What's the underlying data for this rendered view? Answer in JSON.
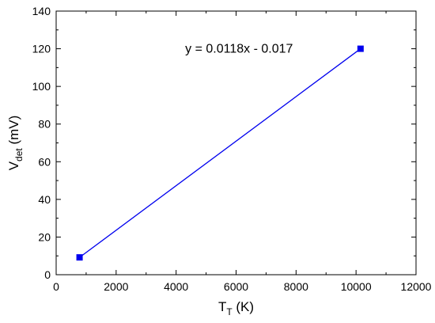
{
  "chart_data": {
    "type": "scatter",
    "title": "",
    "xlabel": {
      "main": "T",
      "sub": "T",
      "unit": " (K)"
    },
    "ylabel": {
      "main": "V",
      "sub": "det",
      "unit": " (mV)"
    },
    "xlim": [
      0,
      12000
    ],
    "ylim": [
      0,
      140
    ],
    "xticks": [
      0,
      2000,
      4000,
      6000,
      8000,
      10000,
      12000
    ],
    "yticks": [
      0,
      20,
      40,
      60,
      80,
      100,
      120,
      140
    ],
    "grid": false,
    "series": [
      {
        "color": "#0000ee",
        "marker": "square",
        "points": [
          {
            "x": 780,
            "y": 9.2
          },
          {
            "x": 10150,
            "y": 120
          }
        ]
      }
    ],
    "fit_line": {
      "color": "#0000ee",
      "x": [
        780,
        10150
      ]
    },
    "annotation": {
      "text": "y = 0.0118x - 0.017",
      "x": 6100,
      "y": 118
    }
  }
}
